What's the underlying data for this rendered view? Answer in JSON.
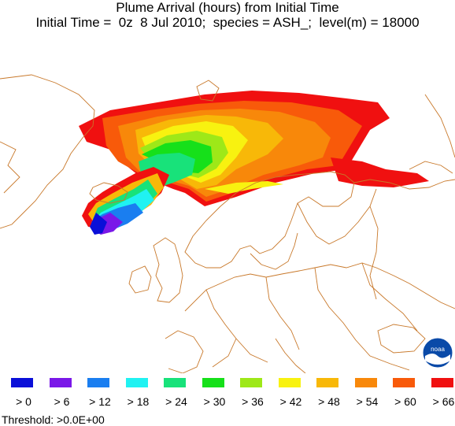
{
  "header": {
    "title_line1": "Plume Arrival (hours) from Initial Time",
    "title_line2": "Initial Time =  0z  8 Jul 2010;  species = ASH_;  level(m) = 18000"
  },
  "map": {
    "region": "North Atlantic / Scandinavia / Europe",
    "coastline_color": "#c8782a",
    "plume": {
      "origin_label": "",
      "bands": [
        {
          "min": 0,
          "color": "#0a0fd8"
        },
        {
          "min": 6,
          "color": "#7a18e8"
        },
        {
          "min": 12,
          "color": "#1a7ef0"
        },
        {
          "min": 18,
          "color": "#20f2f2"
        },
        {
          "min": 24,
          "color": "#18e27a"
        },
        {
          "min": 30,
          "color": "#16e01a"
        },
        {
          "min": 36,
          "color": "#9ee818"
        },
        {
          "min": 42,
          "color": "#f8f210"
        },
        {
          "min": 48,
          "color": "#f8b808"
        },
        {
          "min": 54,
          "color": "#f8880a"
        },
        {
          "min": 60,
          "color": "#f85a0a"
        },
        {
          "min": 66,
          "color": "#f01010"
        }
      ]
    }
  },
  "legend": {
    "items": [
      {
        "label": "> 0",
        "color": "#0a0fd8"
      },
      {
        "label": "> 6",
        "color": "#7a18e8"
      },
      {
        "label": "> 12",
        "color": "#1a7ef0"
      },
      {
        "label": "> 18",
        "color": "#20f2f2"
      },
      {
        "label": "> 24",
        "color": "#18e27a"
      },
      {
        "label": "> 30",
        "color": "#16e01a"
      },
      {
        "label": "> 36",
        "color": "#9ee818"
      },
      {
        "label": "> 42",
        "color": "#f8f210"
      },
      {
        "label": "> 48",
        "color": "#f8b808"
      },
      {
        "label": "> 54",
        "color": "#f8880a"
      },
      {
        "label": "> 60",
        "color": "#f85a0a"
      },
      {
        "label": "> 66",
        "color": "#f01010"
      }
    ]
  },
  "footer": {
    "threshold": "Threshold: >0.0E+00"
  },
  "logo": {
    "icon": "noaa-logo-icon",
    "text": "noaa"
  }
}
